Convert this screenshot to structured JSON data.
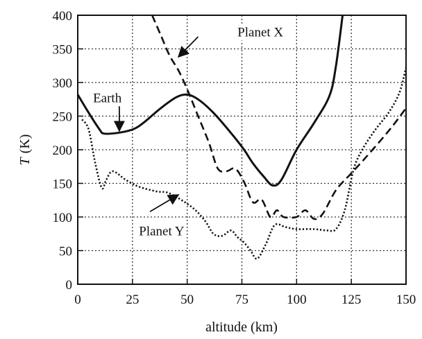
{
  "chart_data": {
    "type": "line",
    "title": "",
    "xlabel": "altitude (km)",
    "ylabel_symbol": "T",
    "ylabel_unit": "(K)",
    "xlim": [
      0,
      150
    ],
    "ylim": [
      0,
      400
    ],
    "x_ticks": [
      0,
      25,
      50,
      75,
      100,
      125,
      150
    ],
    "y_ticks": [
      0,
      50,
      100,
      150,
      200,
      250,
      300,
      350,
      400
    ],
    "grid": "dotted",
    "series": [
      {
        "name": "Earth",
        "style": "solid",
        "points": [
          [
            0,
            282
          ],
          [
            5,
            255
          ],
          [
            10,
            230
          ],
          [
            12,
            224
          ],
          [
            18,
            225
          ],
          [
            25,
            230
          ],
          [
            30,
            240
          ],
          [
            38,
            262
          ],
          [
            45,
            278
          ],
          [
            50,
            282
          ],
          [
            55,
            275
          ],
          [
            62,
            255
          ],
          [
            70,
            225
          ],
          [
            76,
            200
          ],
          [
            80,
            180
          ],
          [
            85,
            160
          ],
          [
            89,
            147
          ],
          [
            93,
            155
          ],
          [
            100,
            200
          ],
          [
            108,
            240
          ],
          [
            115,
            280
          ],
          [
            118,
            325
          ],
          [
            121,
            400
          ]
        ]
      },
      {
        "name": "Planet X",
        "style": "dashed",
        "points": [
          [
            34,
            400
          ],
          [
            38,
            370
          ],
          [
            42,
            340
          ],
          [
            46,
            318
          ],
          [
            50,
            290
          ],
          [
            55,
            250
          ],
          [
            60,
            210
          ],
          [
            64,
            172
          ],
          [
            68,
            168
          ],
          [
            72,
            172
          ],
          [
            76,
            152
          ],
          [
            80,
            122
          ],
          [
            84,
            126
          ],
          [
            88,
            100
          ],
          [
            91,
            110
          ],
          [
            94,
            100
          ],
          [
            100,
            100
          ],
          [
            104,
            110
          ],
          [
            108,
            97
          ],
          [
            112,
            105
          ],
          [
            118,
            140
          ],
          [
            125,
            165
          ],
          [
            132,
            190
          ],
          [
            140,
            220
          ],
          [
            145,
            240
          ],
          [
            150,
            262
          ]
        ]
      },
      {
        "name": "Planet Y",
        "style": "dotted",
        "points": [
          [
            2,
            245
          ],
          [
            5,
            230
          ],
          [
            8,
            180
          ],
          [
            11,
            143
          ],
          [
            13,
            155
          ],
          [
            16,
            168
          ],
          [
            22,
            155
          ],
          [
            28,
            145
          ],
          [
            36,
            138
          ],
          [
            42,
            135
          ],
          [
            52,
            115
          ],
          [
            58,
            95
          ],
          [
            62,
            75
          ],
          [
            66,
            72
          ],
          [
            70,
            80
          ],
          [
            73,
            70
          ],
          [
            76,
            62
          ],
          [
            79,
            50
          ],
          [
            82,
            38
          ],
          [
            86,
            60
          ],
          [
            90,
            88
          ],
          [
            95,
            85
          ],
          [
            100,
            82
          ],
          [
            108,
            82
          ],
          [
            114,
            80
          ],
          [
            118,
            82
          ],
          [
            122,
            110
          ],
          [
            126,
            170
          ],
          [
            130,
            200
          ],
          [
            136,
            230
          ],
          [
            142,
            255
          ],
          [
            147,
            285
          ],
          [
            150,
            322
          ]
        ]
      }
    ],
    "annotations": [
      {
        "text": "Planet X",
        "series": "Planet X",
        "label_at": [
          73,
          376
        ],
        "arrow_from": [
          55,
          368
        ],
        "arrow_to": [
          46,
          338
        ]
      },
      {
        "text": "Earth",
        "series": "Earth",
        "label_at": [
          7,
          278
        ],
        "arrow_from": [
          19,
          270
        ],
        "arrow_to": [
          19,
          228
        ]
      },
      {
        "text": "Planet Y",
        "series": "Planet Y",
        "label_at": [
          28,
          80
        ],
        "arrow_from": [
          33,
          108
        ],
        "arrow_to": [
          46,
          133
        ]
      }
    ],
    "colors": {
      "line": "#111111",
      "grid": "#333333",
      "background": "#ffffff"
    }
  }
}
